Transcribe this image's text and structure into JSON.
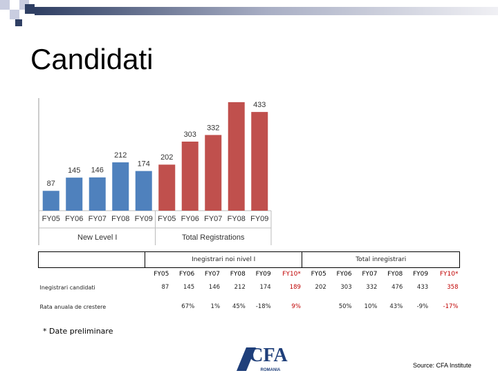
{
  "title": "Candidati",
  "chart_data": {
    "type": "bar",
    "ylim": [
      0,
      500
    ],
    "groups": [
      {
        "name": "New Level I",
        "color": "#4f81bd",
        "categories": [
          "FY05",
          "FY06",
          "FY07",
          "FY08",
          "FY09"
        ],
        "values": [
          87,
          145,
          146,
          212,
          174
        ],
        "value_labels": [
          "87",
          "145",
          "146",
          "212",
          "174"
        ]
      },
      {
        "name": "Total Registrations",
        "color": "#c0504d",
        "categories": [
          "FY05",
          "FY06",
          "FY07",
          "FY08",
          "FY09"
        ],
        "values": [
          202,
          303,
          332,
          476,
          433
        ],
        "value_labels": [
          "202",
          "303",
          "332",
          null,
          "433"
        ]
      }
    ]
  },
  "table": {
    "group_headers": [
      "Inegistrari noi nivel I",
      "Total inregistrari"
    ],
    "columns": [
      "FY05",
      "FY06",
      "FY07",
      "FY08",
      "FY09",
      "FY10*",
      "FY05",
      "FY06",
      "FY07",
      "FY08",
      "FY09",
      "FY10*"
    ],
    "rows": [
      {
        "label": "Inegistrari candidati",
        "cells": [
          87,
          145,
          146,
          212,
          174,
          189,
          202,
          303,
          332,
          476,
          433,
          358
        ]
      },
      {
        "label": "Rata anuala de crestere",
        "cells": [
          null,
          "67%",
          "1%",
          "45%",
          "-18%",
          "9%",
          null,
          "50%",
          "10%",
          "43%",
          "-9%",
          "-17%"
        ]
      }
    ]
  },
  "footnote": "* Date preliminare",
  "logo": {
    "text": "CFA",
    "subtext": "ROMANIA"
  },
  "source": "Source: CFA Institute"
}
